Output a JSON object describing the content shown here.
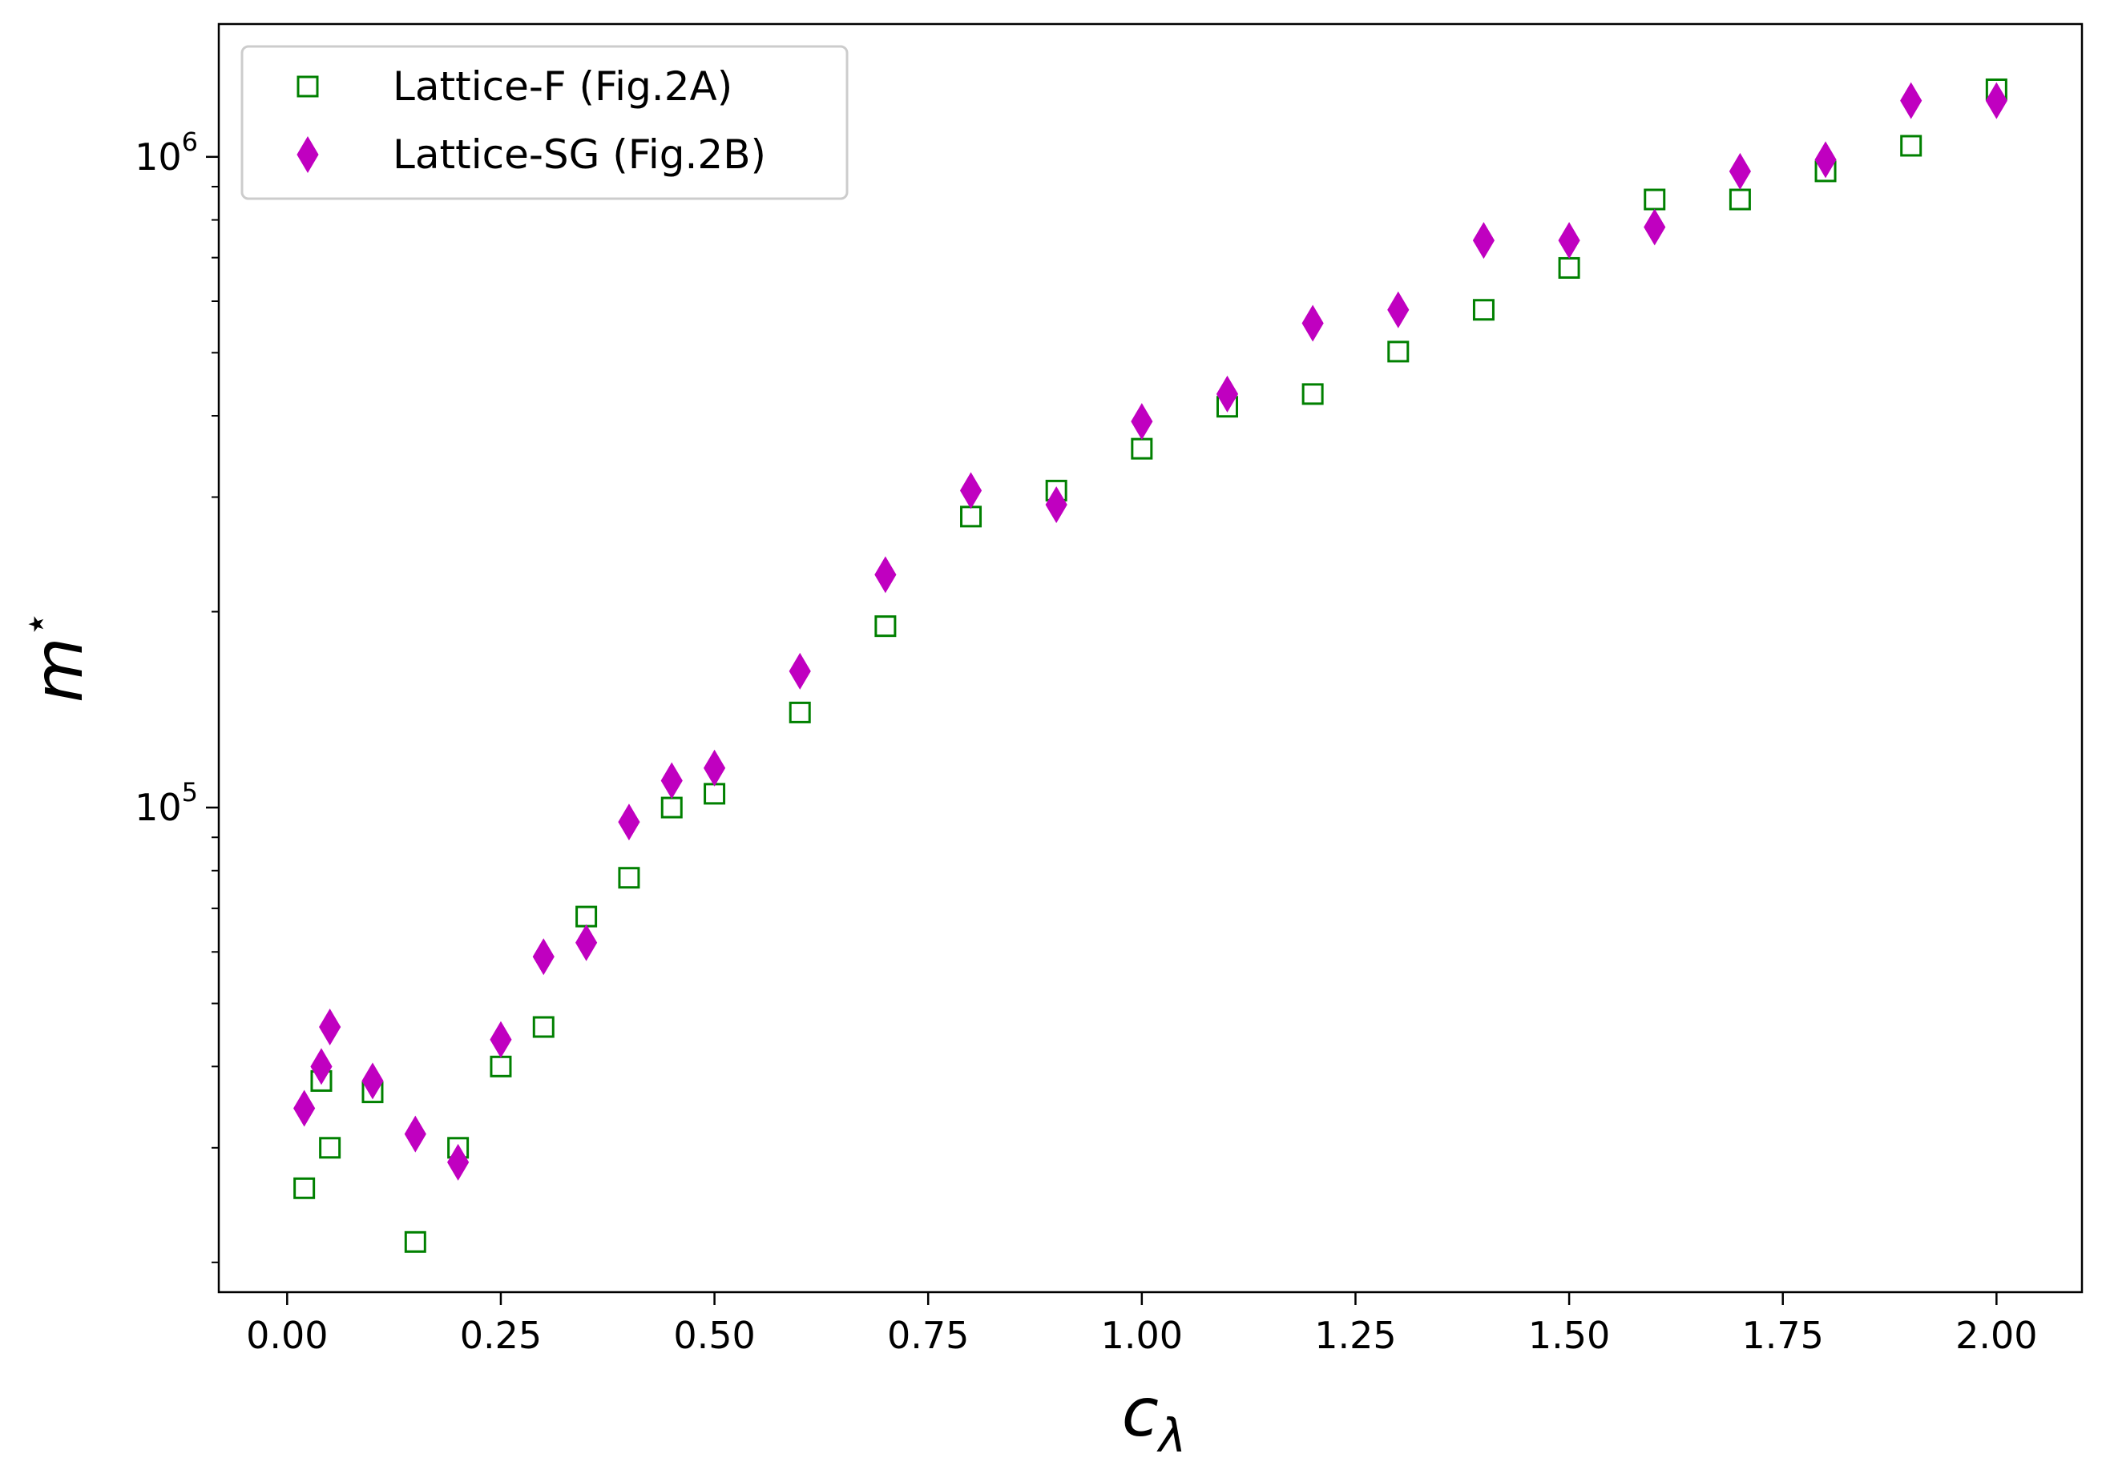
{
  "chart_data": {
    "type": "scatter",
    "xlabel": "c",
    "xlabel_sub": "λ",
    "ylabel": "m",
    "ylabel_sup": "⋆",
    "xlim": [
      -0.08,
      2.1
    ],
    "ylim": [
      18000,
      1600000
    ],
    "yscale": "log",
    "grid": false,
    "legend_position": "top-left",
    "x_ticks": [
      {
        "value": 0.0,
        "label": "0.00"
      },
      {
        "value": 0.25,
        "label": "0.25"
      },
      {
        "value": 0.5,
        "label": "0.50"
      },
      {
        "value": 0.75,
        "label": "0.75"
      },
      {
        "value": 1.0,
        "label": "1.00"
      },
      {
        "value": 1.25,
        "label": "1.25"
      },
      {
        "value": 1.5,
        "label": "1.50"
      },
      {
        "value": 1.75,
        "label": "1.75"
      },
      {
        "value": 2.0,
        "label": "2.00"
      }
    ],
    "y_major_ticks": [
      {
        "value": 100000,
        "base": "10",
        "exp": "5"
      },
      {
        "value": 1000000,
        "base": "10",
        "exp": "6"
      }
    ],
    "y_minor_ticks": [
      20000,
      30000,
      40000,
      50000,
      60000,
      70000,
      80000,
      90000,
      200000,
      300000,
      400000,
      500000,
      600000,
      700000,
      800000,
      900000
    ],
    "series": [
      {
        "name": "Lattice-F (Fig.2A)",
        "marker": "square-open",
        "color": "#008000",
        "points": [
          {
            "x": 0.02,
            "y": 26000
          },
          {
            "x": 0.04,
            "y": 38000
          },
          {
            "x": 0.05,
            "y": 30000
          },
          {
            "x": 0.1,
            "y": 36500
          },
          {
            "x": 0.15,
            "y": 21500
          },
          {
            "x": 0.2,
            "y": 30000
          },
          {
            "x": 0.25,
            "y": 40000
          },
          {
            "x": 0.3,
            "y": 46000
          },
          {
            "x": 0.35,
            "y": 68000
          },
          {
            "x": 0.4,
            "y": 78000
          },
          {
            "x": 0.45,
            "y": 100000
          },
          {
            "x": 0.5,
            "y": 105000
          },
          {
            "x": 0.6,
            "y": 140000
          },
          {
            "x": 0.7,
            "y": 190000
          },
          {
            "x": 0.8,
            "y": 280000
          },
          {
            "x": 0.9,
            "y": 307000
          },
          {
            "x": 1.0,
            "y": 356000
          },
          {
            "x": 1.1,
            "y": 413000
          },
          {
            "x": 1.2,
            "y": 432000
          },
          {
            "x": 1.3,
            "y": 502000
          },
          {
            "x": 1.4,
            "y": 582000
          },
          {
            "x": 1.5,
            "y": 675000
          },
          {
            "x": 1.6,
            "y": 860000
          },
          {
            "x": 1.7,
            "y": 860000
          },
          {
            "x": 1.8,
            "y": 950000
          },
          {
            "x": 1.9,
            "y": 1040000
          },
          {
            "x": 2.0,
            "y": 1270000
          }
        ]
      },
      {
        "name": "Lattice-SG (Fig.2B)",
        "marker": "diamond-filled",
        "color": "#c000c0",
        "points": [
          {
            "x": 0.02,
            "y": 34500
          },
          {
            "x": 0.04,
            "y": 40000
          },
          {
            "x": 0.05,
            "y": 46000
          },
          {
            "x": 0.1,
            "y": 38000
          },
          {
            "x": 0.15,
            "y": 31500
          },
          {
            "x": 0.2,
            "y": 28500
          },
          {
            "x": 0.25,
            "y": 44000
          },
          {
            "x": 0.3,
            "y": 59000
          },
          {
            "x": 0.35,
            "y": 62000
          },
          {
            "x": 0.4,
            "y": 95000
          },
          {
            "x": 0.45,
            "y": 110000
          },
          {
            "x": 0.5,
            "y": 115000
          },
          {
            "x": 0.6,
            "y": 162000
          },
          {
            "x": 0.7,
            "y": 228000
          },
          {
            "x": 0.8,
            "y": 307000
          },
          {
            "x": 0.9,
            "y": 292000
          },
          {
            "x": 1.0,
            "y": 392000
          },
          {
            "x": 1.1,
            "y": 432000
          },
          {
            "x": 1.2,
            "y": 555000
          },
          {
            "x": 1.3,
            "y": 582000
          },
          {
            "x": 1.4,
            "y": 744000
          },
          {
            "x": 1.5,
            "y": 744000
          },
          {
            "x": 1.6,
            "y": 780000
          },
          {
            "x": 1.7,
            "y": 950000
          },
          {
            "x": 1.8,
            "y": 990000
          },
          {
            "x": 1.9,
            "y": 1220000
          },
          {
            "x": 2.0,
            "y": 1220000
          }
        ]
      }
    ]
  }
}
